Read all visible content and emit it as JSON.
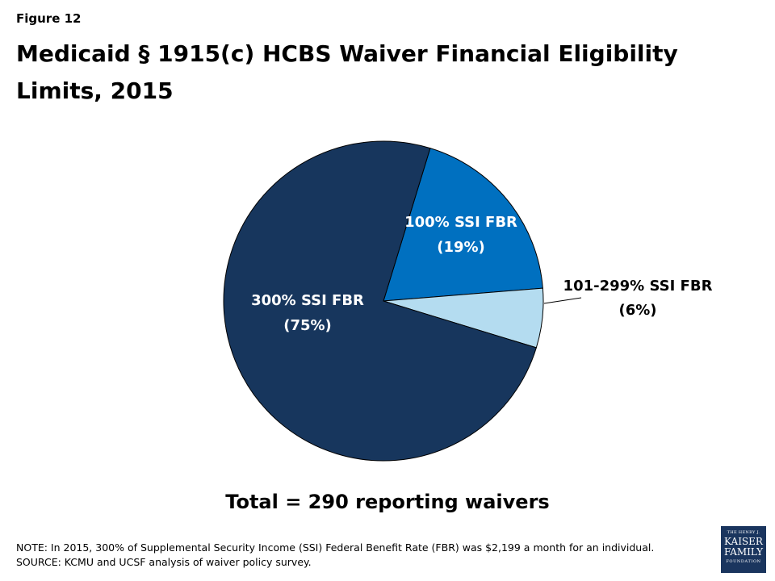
{
  "figure_label": "Figure 12",
  "title": "Medicaid § 1915(c) HCBS Waiver Financial Eligibility Limits, 2015",
  "total_text": "Total = 290 reporting waivers",
  "note": "NOTE: In 2015, 300% of Supplemental Security Income (SSI) Federal Benefit Rate (FBR) was $2,199 a month for an individual.",
  "source": "SOURCE: KCMU and UCSF analysis of waiver policy survey.",
  "logo": {
    "line1": "THE HENRY J.",
    "line2": "KAISER",
    "line3": "FAMILY",
    "line4": "FOUNDATION"
  },
  "chart_data": {
    "type": "pie",
    "slices": [
      {
        "name": "100% SSI FBR",
        "value": 19,
        "label": "(19%)",
        "color": "#0070c0"
      },
      {
        "name": "101-299% SSI FBR",
        "value": 6,
        "label": "(6%)",
        "color": "#b4dcf0"
      },
      {
        "name": "300% SSI FBR",
        "value": 75,
        "label": "(75%)",
        "color": "#17365d"
      }
    ],
    "start_angle_deg": 17,
    "label_colors": [
      "#ffffff",
      "#000000",
      "#ffffff"
    ]
  }
}
